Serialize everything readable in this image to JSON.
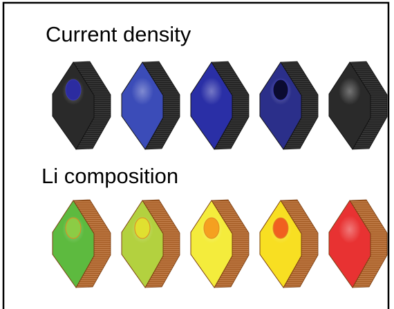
{
  "panels": [
    {
      "label": "Current density"
    },
    {
      "label": "Li composition"
    }
  ]
}
